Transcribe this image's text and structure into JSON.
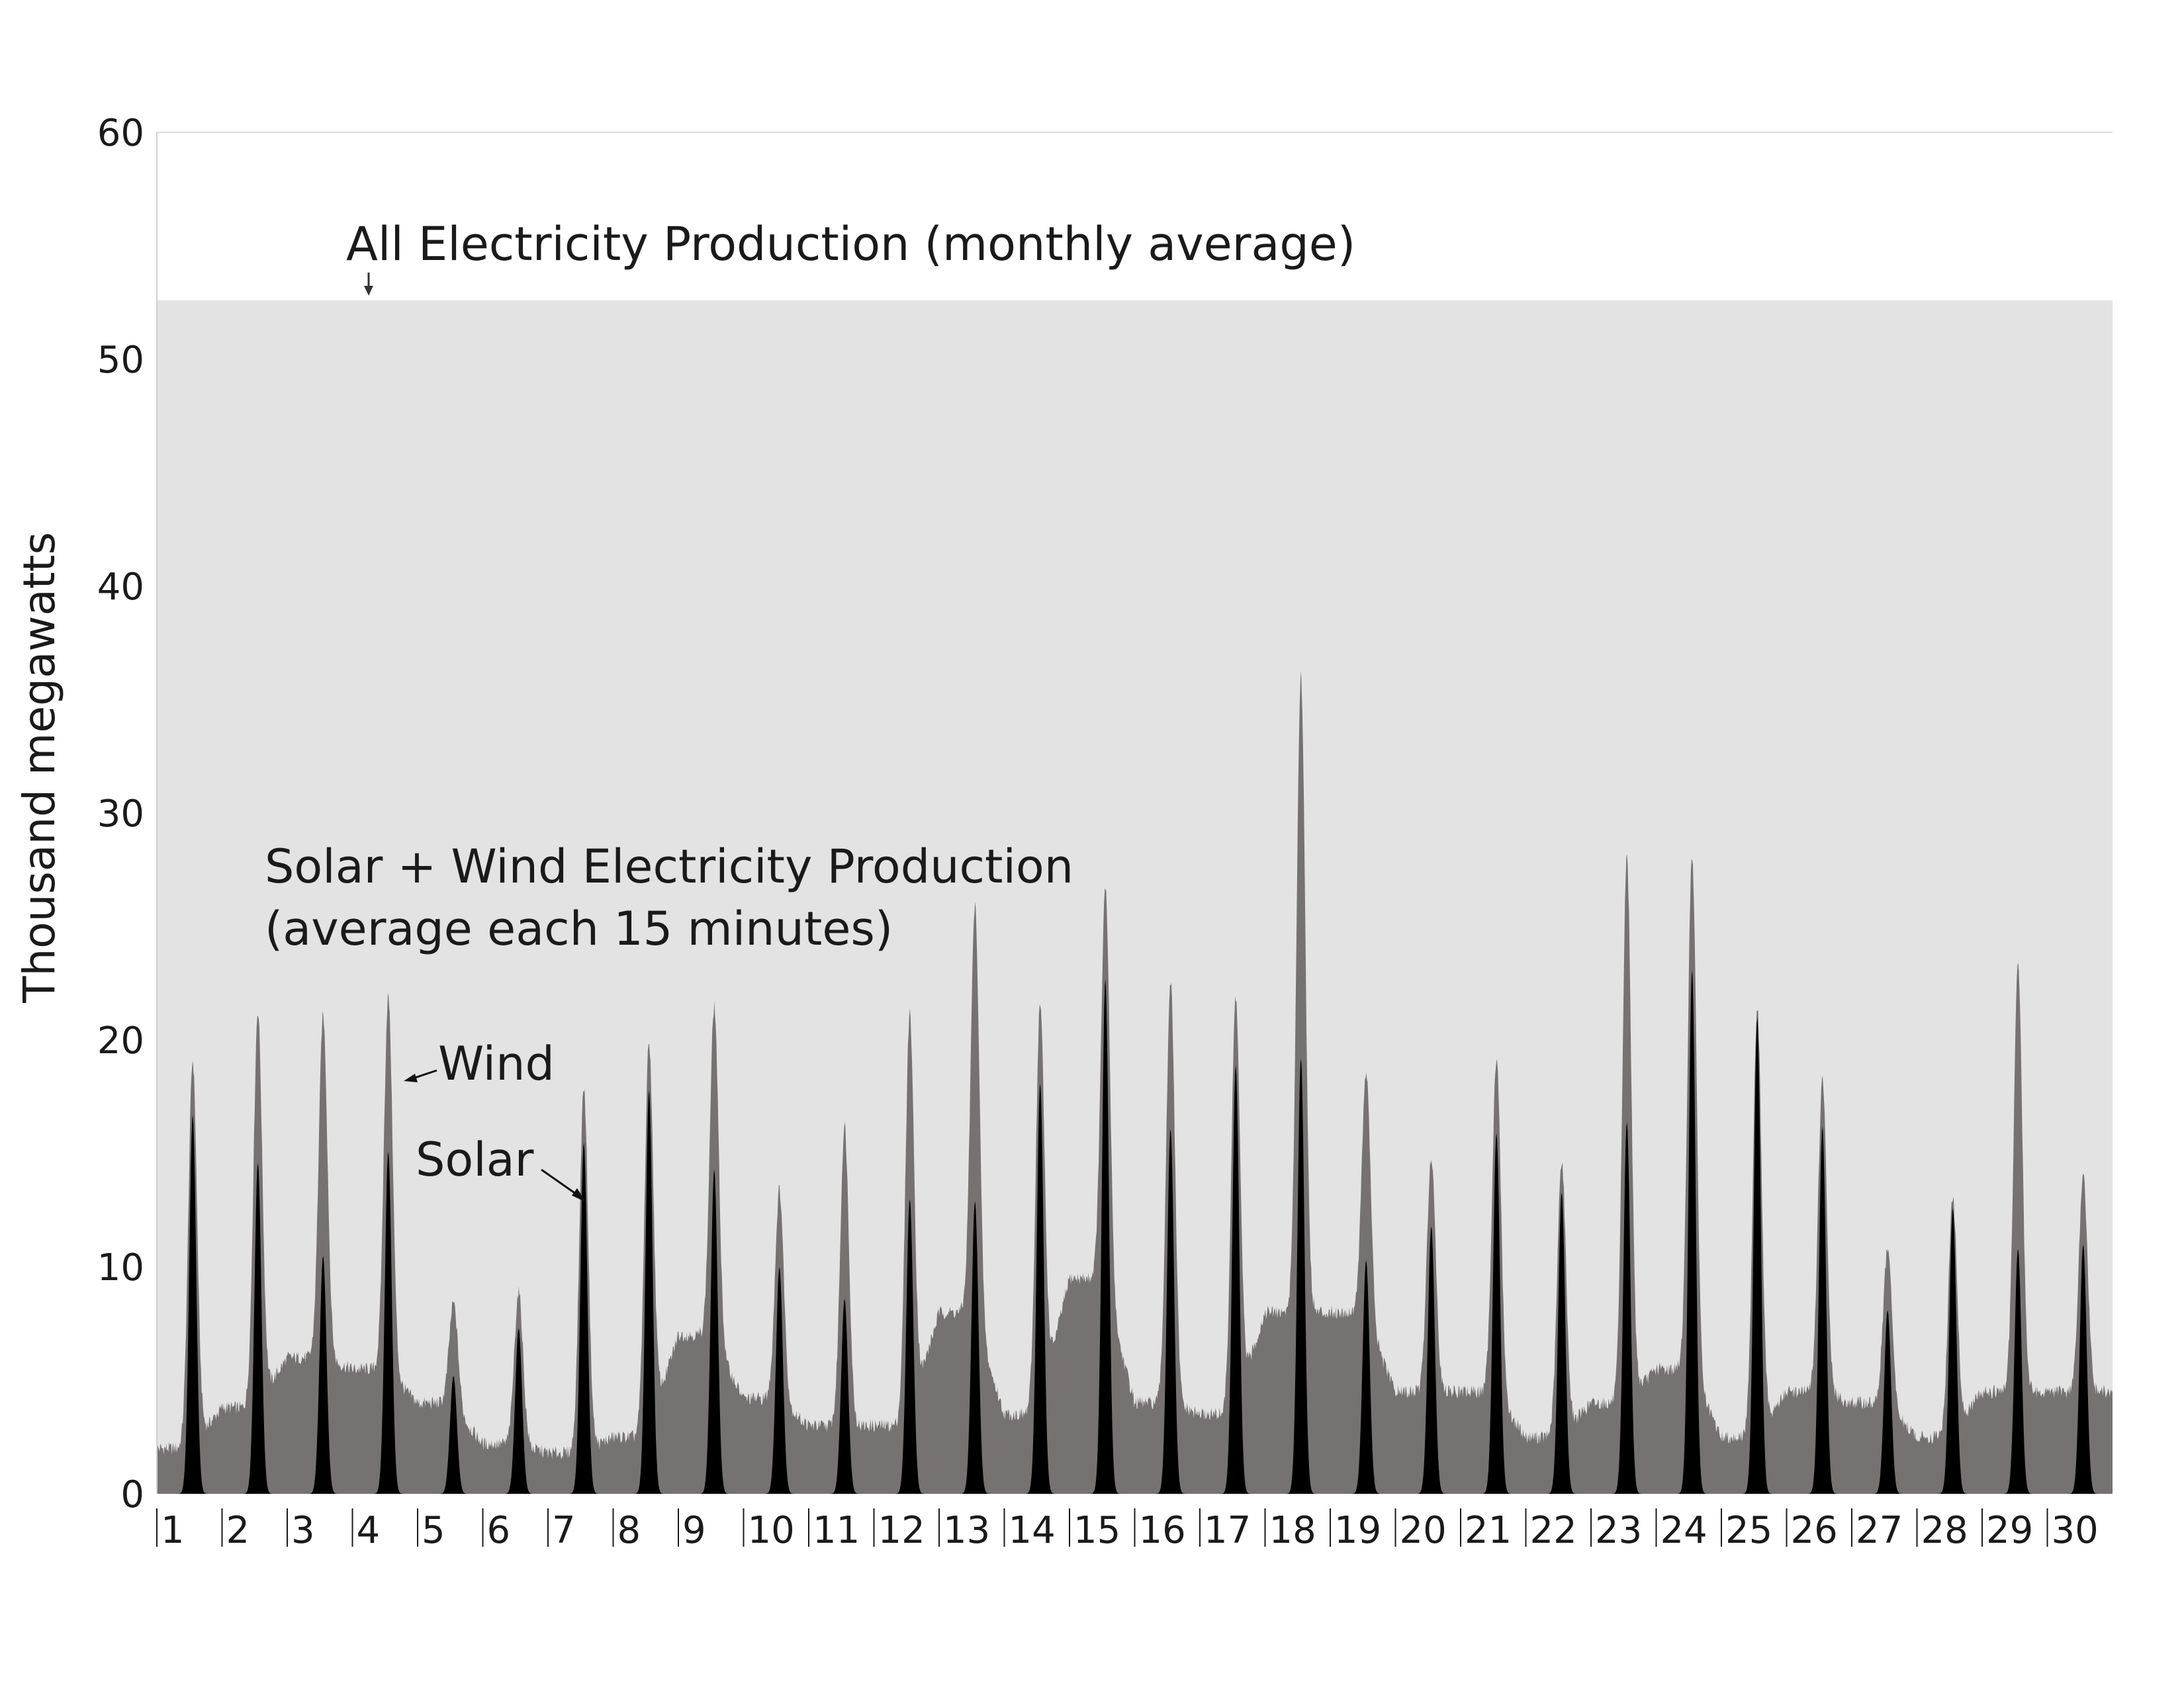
{
  "chart_data": {
    "type": "area",
    "xlabel": "",
    "ylabel": "Thousand megawatts",
    "ylim": [
      0,
      60
    ],
    "y_ticks": [
      0,
      10,
      20,
      30,
      40,
      50,
      60
    ],
    "x_days": [
      "1",
      "2",
      "3",
      "4",
      "5",
      "6",
      "7",
      "8",
      "9",
      "10",
      "11",
      "12",
      "13",
      "14",
      "15",
      "16",
      "17",
      "18",
      "19",
      "20",
      "21",
      "22",
      "23",
      "24",
      "25",
      "26",
      "27",
      "28",
      "29",
      "30"
    ],
    "all_production_average": 52.6,
    "grid": "top line at 60 only",
    "colors": {
      "all": "#e3e3e3",
      "wind": "#767272",
      "solar": "#000000"
    },
    "series": [
      {
        "name": "Wind",
        "daily_peak_total": [
          19.1,
          21.3,
          21.1,
          21.9,
          8.4,
          8.9,
          17.9,
          19.9,
          21.5,
          13.4,
          16.2,
          21.2,
          25.9,
          21.6,
          26.6,
          22.6,
          21.9,
          36.1,
          18.6,
          14.9,
          19.2,
          14.7,
          28.1,
          28.2,
          21.4,
          18.2,
          10.8,
          13.1,
          23.2,
          14.0
        ],
        "daily_base": [
          2.0,
          3.8,
          6.0,
          5.5,
          4.0,
          2.2,
          1.8,
          2.5,
          7.0,
          4.2,
          3.0,
          3.0,
          8.0,
          3.5,
          9.5,
          4.0,
          3.5,
          8.0,
          8.0,
          4.5,
          4.5,
          2.5,
          4.0,
          5.5,
          2.5,
          4.5,
          4.0,
          2.5,
          4.5,
          4.5
        ]
      },
      {
        "name": "Solar",
        "daily_peak": [
          16.7,
          14.6,
          10.5,
          15.1,
          5.2,
          7.3,
          15.5,
          17.8,
          14.3,
          10.0,
          8.6,
          13.0,
          12.9,
          18.1,
          22.7,
          16.1,
          18.9,
          19.2,
          10.3,
          11.8,
          15.9,
          13.3,
          16.4,
          23.1,
          21.0,
          16.2,
          8.1,
          12.6,
          10.8,
          11.0
        ]
      }
    ],
    "annotations": {
      "all": "All Electricity Production (monthly average)",
      "combined_line1": "Solar + Wind Electricity Production",
      "combined_line2": "(average each 15 minutes)",
      "wind": "Wind",
      "solar": "Solar"
    }
  }
}
